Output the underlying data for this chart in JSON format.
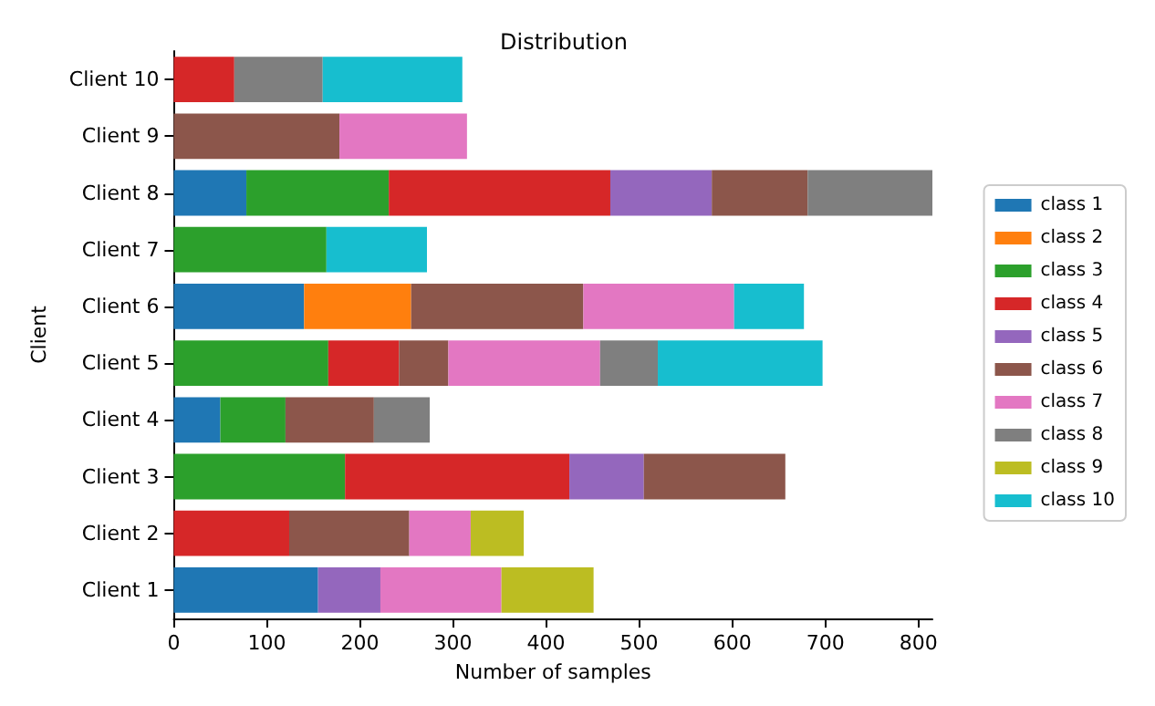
{
  "chart_data": {
    "type": "bar",
    "orientation": "horizontal",
    "stacked": true,
    "title": "Distribution",
    "xlabel": "Number of samples",
    "ylabel": "Client",
    "legend": "right",
    "grid": false,
    "categories": [
      "Client 10",
      "Client 9",
      "Client 8",
      "Client 7",
      "Client 6",
      "Client 5",
      "Client 4",
      "Client 3",
      "Client 2",
      "Client 1"
    ],
    "xlim": [
      0,
      815
    ],
    "xticks": [
      0,
      100,
      200,
      300,
      400,
      500,
      600,
      700,
      800
    ],
    "series": [
      {
        "name": "class 1",
        "color": "#1f77b4",
        "values": [
          null,
          null,
          78,
          null,
          140,
          null,
          50,
          null,
          null,
          155
        ]
      },
      {
        "name": "class 2",
        "color": "#ff7f0e",
        "values": [
          null,
          null,
          null,
          null,
          115,
          null,
          null,
          null,
          null,
          null
        ]
      },
      {
        "name": "class 3",
        "color": "#2ca02c",
        "values": [
          null,
          null,
          153,
          164,
          null,
          166,
          70,
          184,
          null,
          null
        ]
      },
      {
        "name": "class 4",
        "color": "#d62728",
        "values": [
          65,
          null,
          238,
          null,
          null,
          76,
          null,
          241,
          124,
          null
        ]
      },
      {
        "name": "class 5",
        "color": "#9467bd",
        "values": [
          null,
          null,
          109,
          null,
          null,
          null,
          null,
          80,
          null,
          67
        ]
      },
      {
        "name": "class 6",
        "color": "#8c564b",
        "values": [
          null,
          178,
          103,
          null,
          185,
          53,
          95,
          152,
          129,
          null
        ]
      },
      {
        "name": "class 7",
        "color": "#e377c2",
        "values": [
          null,
          137,
          null,
          null,
          162,
          163,
          null,
          null,
          66,
          130
        ]
      },
      {
        "name": "class 8",
        "color": "#7f7f7f",
        "values": [
          95,
          null,
          134,
          null,
          null,
          62,
          60,
          null,
          null,
          null
        ]
      },
      {
        "name": "class 9",
        "color": "#bcbd22",
        "values": [
          null,
          null,
          null,
          null,
          null,
          null,
          null,
          null,
          57,
          99
        ]
      },
      {
        "name": "class 10",
        "color": "#17becf",
        "values": [
          150,
          null,
          null,
          108,
          75,
          177,
          null,
          null,
          null,
          null
        ]
      }
    ]
  }
}
